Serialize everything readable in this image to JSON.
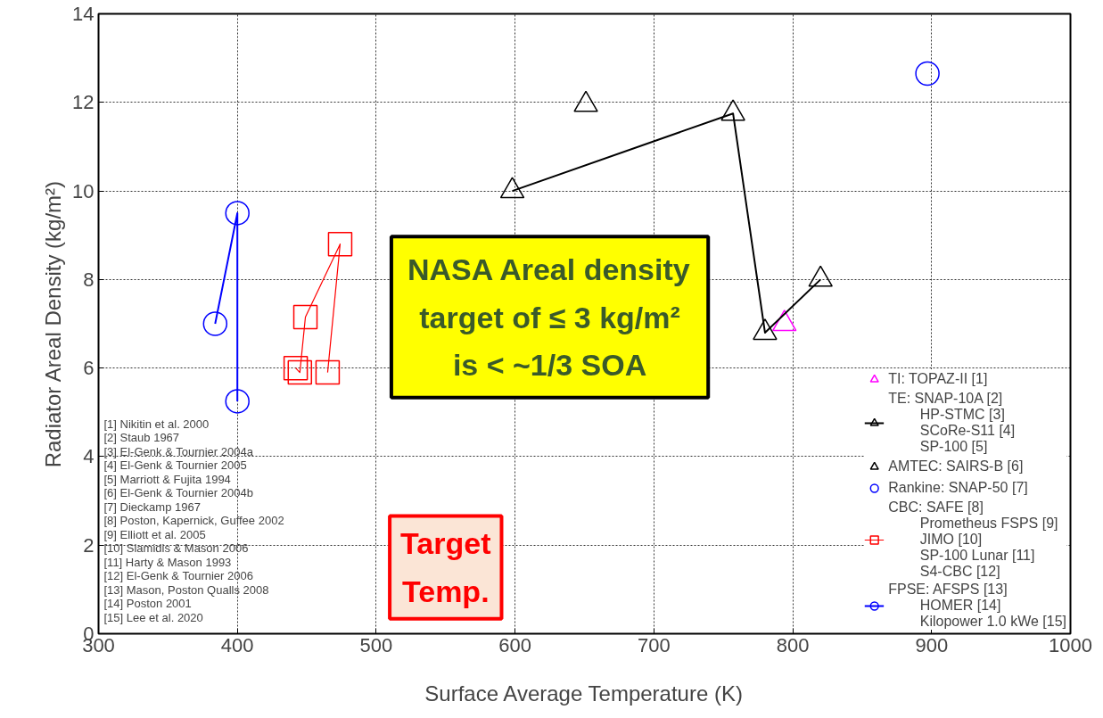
{
  "chart_data": {
    "type": "scatter",
    "xlabel": "Surface Average Temperature (K)",
    "ylabel": "Radiator Areal Density (kg/m²)",
    "xlim": [
      300,
      1000
    ],
    "ylim": [
      0,
      14
    ],
    "xticks": [
      300,
      400,
      500,
      600,
      700,
      800,
      900,
      1000
    ],
    "yticks": [
      0,
      2,
      4,
      6,
      8,
      10,
      12,
      14
    ],
    "grid": true,
    "legend": "bottom right",
    "series": [
      {
        "name": "TI: TOPAZ-II [1]",
        "color": "#ff00ff",
        "marker": "triangle",
        "x": [
          794
        ],
        "values": [
          7.0
        ]
      },
      {
        "name": "TE: SNAP-10A [2]\n        HP-STMC [3]\n        SCoRe-S11 [4]\n        SP-100 [5]",
        "color": "#000000",
        "type": "line",
        "marker": "triangle",
        "x": [
          598,
          757,
          780,
          820
        ],
        "values": [
          10.0,
          11.75,
          6.8,
          8.0
        ]
      },
      {
        "name": "AMTEC: SAIRS-B [6]",
        "color": "#000000",
        "marker": "triangle",
        "x": [
          651
        ],
        "values": [
          11.95
        ]
      },
      {
        "name": "Rankine: SNAP-50 [7]",
        "color": "#0000ff",
        "marker": "circle",
        "x": [
          897
        ],
        "values": [
          12.65
        ]
      },
      {
        "name": "CBC: SAFE [8]\n        Prometheus FSPS [9]\n        JIMO [10]\n        SP-100 Lunar [11]\n        S4-CBC [12]",
        "color": "#ff0000",
        "type": "line",
        "marker": "square",
        "x": [
          442,
          445,
          449,
          474,
          465
        ],
        "values": [
          6.0,
          5.9,
          7.15,
          8.8,
          5.9
        ]
      },
      {
        "name": "FPSE: AFSPS [13]\n        HOMER [14]\n        Kilopower 1.0 kWe [15]",
        "color": "#0000ff",
        "type": "line",
        "marker": "circle",
        "x": [
          384,
          400,
          400
        ],
        "values": [
          7.0,
          9.5,
          5.25
        ]
      }
    ],
    "annotations": [
      "NASA Areal density\ntarget of ≤ 3 kg/m²\nis < ~1/3 SOA",
      "Target\nTemp.",
      "[1] Nikitin et al. 2000",
      "[2] Staub 1967",
      "[3] El-Genk & Tournier 2004a",
      "[4] El-Genk & Tournier 2005",
      "[5] Marriott & Fujita 1994",
      "[6] El-Genk & Tournier 2004b",
      "[7] Dieckamp 1967",
      "[8] Poston, Kapernick, Guffee 2002",
      "[9] Elliott et al. 2005",
      "[10] Siamidis & Mason 2006",
      "[11] Harty & Mason 1993",
      "[12] El-Genk & Tournier 2006",
      "[13] Mason, Poston Qualls 2008",
      "[14] Poston 2001",
      "[15] Lee et al. 2020"
    ]
  }
}
